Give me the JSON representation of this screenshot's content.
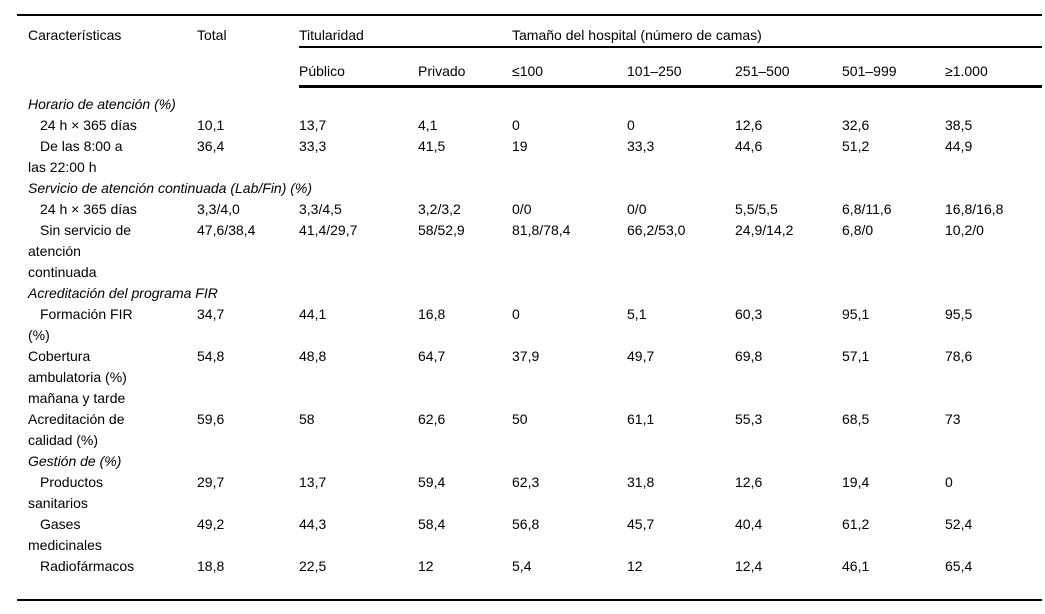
{
  "table": {
    "header": {
      "characteristics": "Características",
      "total": "Total",
      "group_ownership": "Titularidad",
      "group_size": "Tamaño del hospital (número de camas)",
      "subcolumns": [
        "Público",
        "Privado",
        "≤100",
        "101–250",
        "251–500",
        "501–999",
        "≥1.000"
      ]
    },
    "rows": [
      {
        "kind": "section",
        "label": "Horario de atención (%)"
      },
      {
        "kind": "data",
        "indent": true,
        "label": "24 h × 365 días",
        "values": [
          "10,1",
          "13,7",
          "4,1",
          "0",
          "0",
          "12,6",
          "32,6",
          "38,5"
        ]
      },
      {
        "kind": "data",
        "indent": true,
        "label": "De las 8:00 a\nlas 22:00 h",
        "values": [
          "36,4",
          "33,3",
          "41,5",
          "19",
          "33,3",
          "44,6",
          "51,2",
          "44,9"
        ]
      },
      {
        "kind": "section",
        "label": "Servicio de atención continuada (Lab/Fin) (%)"
      },
      {
        "kind": "data",
        "indent": true,
        "label": "24 h × 365 días",
        "values": [
          "3,3/4,0",
          "3,3/4,5",
          "3,2/3,2",
          "0/0",
          "0/0",
          "5,5/5,5",
          "6,8/11,6",
          "16,8/16,8"
        ]
      },
      {
        "kind": "data",
        "indent": true,
        "label": "Sin servicio de\natención\ncontinuada",
        "values": [
          "47,6/38,4",
          "41,4/29,7",
          "58/52,9",
          "81,8/78,4",
          "66,2/53,0",
          "24,9/14,2",
          "6,8/0",
          "10,2/0"
        ]
      },
      {
        "kind": "section",
        "label": "Acreditación del programa FIR"
      },
      {
        "kind": "data",
        "indent": true,
        "label": "Formación FIR\n(%)",
        "values": [
          "34,7",
          "44,1",
          "16,8",
          "0",
          "5,1",
          "60,3",
          "95,1",
          "95,5"
        ]
      },
      {
        "kind": "data",
        "indent": false,
        "label": "Cobertura\nambulatoria (%)\nmañana y tarde",
        "values": [
          "54,8",
          "48,8",
          "64,7",
          "37,9",
          "49,7",
          "69,8",
          "57,1",
          "78,6"
        ]
      },
      {
        "kind": "data",
        "indent": false,
        "label": "Acreditación de\ncalidad (%)",
        "values": [
          "59,6",
          "58",
          "62,6",
          "50",
          "61,1",
          "55,3",
          "68,5",
          "73"
        ]
      },
      {
        "kind": "section",
        "label": "Gestión de (%)"
      },
      {
        "kind": "data",
        "indent": true,
        "label": "Productos\nsanitarios",
        "values": [
          "29,7",
          "13,7",
          "59,4",
          "62,3",
          "31,8",
          "12,6",
          "19,4",
          "0"
        ]
      },
      {
        "kind": "data",
        "indent": true,
        "label": "Gases\nmedicinales",
        "values": [
          "49,2",
          "44,3",
          "58,4",
          "56,8",
          "45,7",
          "40,4",
          "61,2",
          "52,4"
        ]
      },
      {
        "kind": "data",
        "indent": true,
        "label": "Radiofármacos",
        "values": [
          "18,8",
          "22,5",
          "12",
          "5,4",
          "12",
          "12,4",
          "46,1",
          "65,4"
        ]
      }
    ]
  }
}
